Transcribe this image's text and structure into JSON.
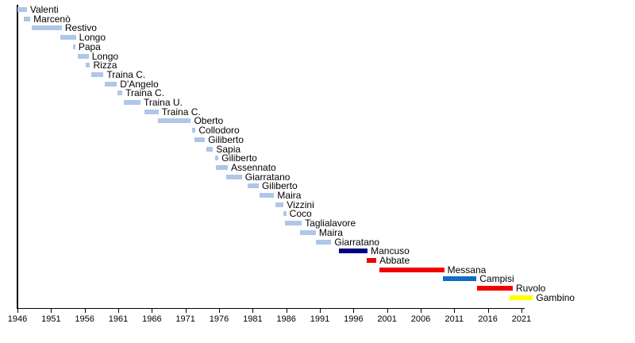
{
  "chart_data": {
    "type": "bar",
    "variant": "horizontal-timeline",
    "title": "",
    "xlabel": "",
    "ylabel": "",
    "xlim": [
      1946,
      2021.5
    ],
    "x_ticks": [
      1946,
      1951,
      1956,
      1961,
      1966,
      1971,
      1976,
      1981,
      1986,
      1991,
      1996,
      2001,
      2006,
      2011,
      2016,
      2021
    ],
    "grid": false,
    "legend": false,
    "axis_color": "#000000",
    "colors": {
      "lightblue": "#aec6e8",
      "navy": "#000082",
      "red": "#ee0000",
      "blue": "#0f6bc6",
      "yellow": "#ffff00"
    },
    "series": [
      {
        "label": "Valenti",
        "start": 1946.0,
        "end": 1947.4,
        "color": "lightblue"
      },
      {
        "label": "Marcenò",
        "start": 1946.9,
        "end": 1947.9,
        "color": "lightblue"
      },
      {
        "label": "Restivo",
        "start": 1948.1,
        "end": 1952.6,
        "color": "lightblue"
      },
      {
        "label": "Longo",
        "start": 1952.4,
        "end": 1954.7,
        "color": "lightblue"
      },
      {
        "label": "Papa",
        "start": 1954.3,
        "end": 1954.6,
        "color": "lightblue"
      },
      {
        "label": "Longo",
        "start": 1955.0,
        "end": 1956.6,
        "color": "lightblue"
      },
      {
        "label": "Rizza",
        "start": 1956.2,
        "end": 1956.8,
        "color": "lightblue"
      },
      {
        "label": "Traina C.",
        "start": 1957.0,
        "end": 1958.8,
        "color": "lightblue"
      },
      {
        "label": "D'Angelo",
        "start": 1959.0,
        "end": 1960.8,
        "color": "lightblue"
      },
      {
        "label": "Traina C.",
        "start": 1960.9,
        "end": 1961.6,
        "color": "lightblue"
      },
      {
        "label": "Traina U.",
        "start": 1961.8,
        "end": 1964.3,
        "color": "lightblue"
      },
      {
        "label": "Traina C.",
        "start": 1964.9,
        "end": 1967.0,
        "color": "lightblue"
      },
      {
        "label": "Oberto",
        "start": 1966.9,
        "end": 1971.8,
        "color": "lightblue"
      },
      {
        "label": "Collodoro",
        "start": 1972.0,
        "end": 1972.5,
        "color": "lightblue"
      },
      {
        "label": "Giliberto",
        "start": 1972.3,
        "end": 1973.9,
        "color": "lightblue"
      },
      {
        "label": "Sapia",
        "start": 1974.1,
        "end": 1975.1,
        "color": "lightblue"
      },
      {
        "label": "Giliberto",
        "start": 1975.4,
        "end": 1975.9,
        "color": "lightblue"
      },
      {
        "label": "Assennato",
        "start": 1975.5,
        "end": 1977.3,
        "color": "lightblue"
      },
      {
        "label": "Giarratano",
        "start": 1977.1,
        "end": 1979.4,
        "color": "lightblue"
      },
      {
        "label": "Giliberto",
        "start": 1980.3,
        "end": 1981.9,
        "color": "lightblue"
      },
      {
        "label": "Maira",
        "start": 1982.0,
        "end": 1984.2,
        "color": "lightblue"
      },
      {
        "label": "Vizzini",
        "start": 1984.4,
        "end": 1985.6,
        "color": "lightblue"
      },
      {
        "label": "Coco",
        "start": 1985.6,
        "end": 1986.0,
        "color": "lightblue"
      },
      {
        "label": "Taglialavore",
        "start": 1985.8,
        "end": 1988.3,
        "color": "lightblue"
      },
      {
        "label": "Maira",
        "start": 1988.1,
        "end": 1990.4,
        "color": "lightblue"
      },
      {
        "label": "Giarratano",
        "start": 1990.4,
        "end": 1992.7,
        "color": "lightblue"
      },
      {
        "label": "Mancuso",
        "start": 1993.8,
        "end": 1998.1,
        "color": "navy"
      },
      {
        "label": "Abbate",
        "start": 1998.0,
        "end": 1999.4,
        "color": "red"
      },
      {
        "label": "Messana",
        "start": 1999.9,
        "end": 2009.5,
        "color": "red"
      },
      {
        "label": "Campisi",
        "start": 2009.3,
        "end": 2014.3,
        "color": "blue"
      },
      {
        "label": "Ruvolo",
        "start": 2014.4,
        "end": 2019.7,
        "color": "red"
      },
      {
        "label": "Gambino",
        "start": 2019.2,
        "end": 2022.7,
        "color": "yellow"
      }
    ]
  }
}
